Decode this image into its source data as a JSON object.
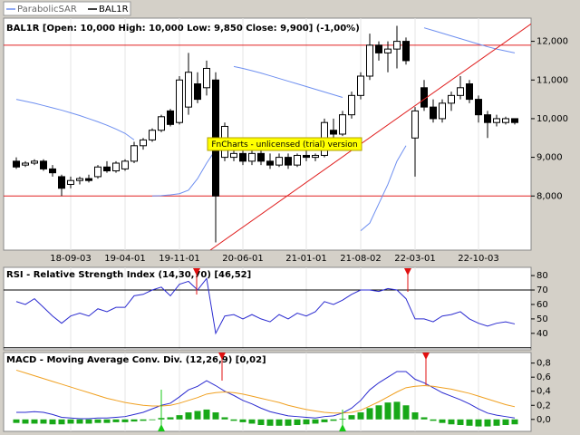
{
  "chart_data": [
    {
      "type": "candlestick",
      "title": "BAL1R [Open: 10,000 High: 10,000 Low: 9,850 Close: 9,900] (-1,00%)",
      "annotation": "FnCharts - unlicensed (trial) version",
      "price": {
        "name": "BAL1R",
        "color": "#000000",
        "open": [
          8900,
          8800,
          8850,
          8900,
          8700,
          8500,
          8300,
          8400,
          8450,
          8500,
          8750,
          8650,
          8700,
          8900,
          9300,
          9450,
          9700,
          10200,
          9900,
          10300,
          10900,
          10800,
          11000,
          9000,
          9000,
          9100,
          8900,
          9100,
          8900,
          8800,
          9000,
          8800,
          9050,
          9000,
          9050,
          9700,
          9600,
          10100,
          10600,
          11100,
          11900,
          11700,
          11800,
          12000,
          9500,
          10800,
          10300,
          10000,
          10400,
          10600,
          10900,
          10500,
          10100,
          9900,
          9900,
          10000
        ],
        "high": [
          9000,
          8900,
          8950,
          8950,
          8800,
          8550,
          8500,
          8500,
          8550,
          8800,
          8900,
          8900,
          8950,
          9400,
          9500,
          9750,
          10100,
          10250,
          11100,
          11700,
          11200,
          11500,
          11200,
          9900,
          9400,
          9300,
          9200,
          9200,
          9100,
          9100,
          9100,
          9100,
          9200,
          9100,
          10000,
          10000,
          10200,
          10700,
          11200,
          12200,
          12000,
          12000,
          12400,
          12100,
          10300,
          11000,
          10500,
          10500,
          10700,
          11100,
          11000,
          10600,
          10200,
          10100,
          10050,
          10000
        ],
        "low": [
          8700,
          8750,
          8800,
          8650,
          8500,
          8000,
          8200,
          8300,
          8350,
          8450,
          8600,
          8600,
          8650,
          8850,
          9200,
          9400,
          9650,
          9800,
          9850,
          10100,
          10400,
          10600,
          6800,
          8900,
          8900,
          8800,
          8800,
          8800,
          8700,
          8750,
          8700,
          8750,
          8900,
          8900,
          9000,
          9500,
          9550,
          10000,
          10500,
          11000,
          11500,
          11200,
          11300,
          11400,
          8500,
          10200,
          9900,
          9900,
          10200,
          10500,
          10400,
          9900,
          9500,
          9800,
          9850,
          9850
        ],
        "close": [
          8750,
          8850,
          8900,
          8700,
          8600,
          8200,
          8400,
          8450,
          8400,
          8750,
          8650,
          8850,
          8900,
          9300,
          9450,
          9700,
          10050,
          9850,
          11000,
          11200,
          10500,
          11300,
          8000,
          9800,
          9100,
          8900,
          9100,
          8900,
          8800,
          9000,
          8800,
          9050,
          9000,
          9050,
          9900,
          9600,
          10100,
          10600,
          11100,
          11900,
          11700,
          11800,
          12000,
          11500,
          10200,
          10300,
          10000,
          10400,
          10600,
          10800,
          10500,
          10100,
          9900,
          10000,
          10000,
          9900
        ]
      },
      "series": [
        {
          "name": "ParabolicSAR",
          "color": "#6e8ff0",
          "values": [
            10500,
            10450,
            10400,
            10340,
            10280,
            10220,
            10150,
            10080,
            10000,
            9920,
            9830,
            9730,
            9620,
            9450,
            null,
            8000,
            8010,
            8030,
            8060,
            8150,
            8450,
            8850,
            9200,
            null,
            11350,
            11300,
            11240,
            11180,
            11110,
            11040,
            10970,
            10900,
            10830,
            10760,
            10690,
            10620,
            10550,
            null,
            7100,
            7300,
            7800,
            8300,
            8900,
            9300,
            null,
            12350,
            12280,
            12210,
            12140,
            12070,
            12000,
            11930,
            11860,
            11800,
            11750,
            11700
          ]
        }
      ],
      "hlines": [
        11900,
        8000
      ],
      "hline_color": "#e02020",
      "ylim": [
        6600,
        12600
      ],
      "yticks": [
        {
          "value": 8000,
          "label": "8,000"
        },
        {
          "value": 9000,
          "label": "9,000"
        },
        {
          "value": 10000,
          "label": "10,000"
        },
        {
          "value": 11000,
          "label": "11,000"
        },
        {
          "value": 12000,
          "label": "12,000"
        }
      ],
      "xticks": [
        {
          "value": 6,
          "label": "18-09-03"
        },
        {
          "value": 12,
          "label": "19-04-01"
        },
        {
          "value": 18,
          "label": "19-11-01"
        },
        {
          "value": 25,
          "label": "20-06-01"
        },
        {
          "value": 32,
          "label": "21-01-01"
        },
        {
          "value": 38,
          "label": "21-08-02"
        },
        {
          "value": 44,
          "label": "22-03-01"
        },
        {
          "value": 51,
          "label": "22-10-03"
        }
      ]
    },
    {
      "type": "line",
      "title": "RSI - Relative Strength Index (14,30,70) [46,52]",
      "color": "#2b2bd0",
      "values": [
        62,
        60,
        64,
        58,
        52,
        47,
        52,
        54,
        52,
        57,
        55,
        58,
        58,
        66,
        67,
        70,
        72,
        66,
        74,
        76,
        70,
        78,
        40,
        52,
        53,
        50,
        53,
        50,
        48,
        53,
        50,
        54,
        52,
        55,
        62,
        60,
        63,
        67,
        70,
        70,
        69,
        71,
        70,
        64,
        50,
        50,
        48,
        52,
        53,
        55,
        50,
        47,
        45,
        47,
        48,
        46.52
      ],
      "hlines": [
        70,
        30
      ],
      "hline_color": "#000000",
      "ylim": [
        28.6,
        85.7
      ],
      "yticks": [
        40,
        50,
        60,
        70,
        80
      ]
    },
    {
      "type": "macd",
      "title": "MACD - Moving Average Conv. Div. (12,26,9) [0,02]",
      "lines": [
        {
          "color": "#2b2bd0",
          "values": [
            0.1,
            0.1,
            0.11,
            0.1,
            0.07,
            0.03,
            0.02,
            0.01,
            0.01,
            0.02,
            0.02,
            0.03,
            0.04,
            0.07,
            0.1,
            0.15,
            0.2,
            0.23,
            0.32,
            0.42,
            0.47,
            0.55,
            0.48,
            0.4,
            0.34,
            0.27,
            0.22,
            0.16,
            0.11,
            0.08,
            0.05,
            0.04,
            0.03,
            0.02,
            0.04,
            0.05,
            0.09,
            0.16,
            0.27,
            0.42,
            0.52,
            0.6,
            0.68,
            0.68,
            0.57,
            0.52,
            0.45,
            0.38,
            0.33,
            0.28,
            0.22,
            0.15,
            0.09,
            0.06,
            0.04,
            0.02
          ]
        },
        {
          "color": "#f0a020",
          "values": [
            0.7,
            0.66,
            0.62,
            0.58,
            0.54,
            0.5,
            0.46,
            0.42,
            0.38,
            0.34,
            0.3,
            0.27,
            0.24,
            0.22,
            0.2,
            0.19,
            0.19,
            0.2,
            0.23,
            0.27,
            0.31,
            0.36,
            0.38,
            0.39,
            0.38,
            0.36,
            0.33,
            0.3,
            0.27,
            0.24,
            0.2,
            0.17,
            0.14,
            0.12,
            0.1,
            0.09,
            0.09,
            0.1,
            0.13,
            0.19,
            0.25,
            0.32,
            0.39,
            0.45,
            0.47,
            0.48,
            0.47,
            0.45,
            0.43,
            0.4,
            0.37,
            0.33,
            0.29,
            0.25,
            0.21,
            0.18
          ]
        }
      ],
      "histogram": {
        "color": "#18a818",
        "values": [
          -0.05,
          -0.06,
          -0.06,
          -0.06,
          -0.07,
          -0.07,
          -0.06,
          -0.06,
          -0.06,
          -0.05,
          -0.05,
          -0.04,
          -0.04,
          -0.03,
          -0.02,
          -0.01,
          0.02,
          0.03,
          0.06,
          0.1,
          0.12,
          0.14,
          0.1,
          0.03,
          -0.02,
          -0.04,
          -0.06,
          -0.08,
          -0.09,
          -0.09,
          -0.09,
          -0.08,
          -0.07,
          -0.06,
          -0.04,
          -0.02,
          0.01,
          0.06,
          0.1,
          0.16,
          0.2,
          0.24,
          0.25,
          0.2,
          0.1,
          0.03,
          -0.02,
          -0.05,
          -0.07,
          -0.08,
          -0.09,
          -0.1,
          -0.1,
          -0.09,
          -0.08,
          -0.07
        ]
      },
      "ylim": [
        -0.17,
        0.95
      ],
      "yticks": [
        {
          "value": 0.0,
          "label": "0,0"
        },
        {
          "value": 0.2,
          "label": "0,2"
        },
        {
          "value": 0.4,
          "label": "0,4"
        },
        {
          "value": 0.6,
          "label": "0,6"
        },
        {
          "value": 0.8,
          "label": "0,8"
        }
      ]
    }
  ]
}
